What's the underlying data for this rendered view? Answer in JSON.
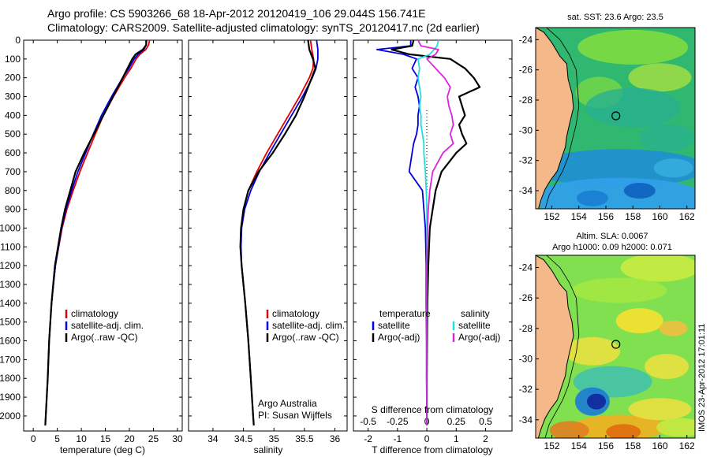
{
  "figure": {
    "title_line1": "Argo profile: CS 5903266_68 18-Apr-2012 20120419_106 29.044S 156.741E",
    "title_line2": "Climatology: CARS2009. Satellite-adjusted climatology: synTS_20120417.nc (2d earlier)",
    "watermark": "IMOS 23-Apr-2012 17:01:11",
    "credit_line1": "Argo Australia",
    "credit_line2": "PI: Susan Wijffels"
  },
  "colors": {
    "climatology": "#e00000",
    "satellite": "#0000dd",
    "argo": "#000000",
    "sal_satellite": "#22dddd",
    "sal_argo": "#dd22dd",
    "land": "#f5b888"
  },
  "chart_data": [
    {
      "type": "line",
      "id": "temperature",
      "xlabel": "temperature (deg C)",
      "xlim": [
        -2,
        31
      ],
      "xticks": [
        0,
        5,
        10,
        15,
        20,
        25,
        30
      ],
      "ylim": [
        2080,
        0
      ],
      "yticks": [
        0,
        100,
        200,
        300,
        400,
        500,
        600,
        700,
        800,
        900,
        1000,
        1100,
        1200,
        1300,
        1400,
        1500,
        1600,
        1700,
        1800,
        1900,
        2000
      ],
      "legend": [
        "climatology",
        "satellite-adj. clim.",
        "Argo(..raw -QC)"
      ],
      "depth": [
        0,
        25,
        50,
        75,
        100,
        150,
        200,
        300,
        400,
        500,
        600,
        700,
        800,
        900,
        1000,
        1200,
        1400,
        1600,
        1800,
        2000,
        2050
      ],
      "series": [
        {
          "name": "climatology",
          "color_key": "climatology",
          "values": [
            24.2,
            24.0,
            23.4,
            22.2,
            21.4,
            20.3,
            19.0,
            16.7,
            14.6,
            12.9,
            11.3,
            9.7,
            8.3,
            7.0,
            6.0,
            4.6,
            3.8,
            3.3,
            3.0,
            2.6,
            2.5
          ]
        },
        {
          "name": "satellite-adj. clim.",
          "color_key": "satellite",
          "values": [
            23.6,
            23.5,
            23.0,
            21.8,
            21.0,
            19.9,
            18.6,
            16.3,
            14.2,
            12.5,
            10.9,
            9.3,
            8.0,
            6.8,
            5.9,
            4.6,
            3.8,
            3.3,
            3.0,
            2.6,
            2.5
          ]
        },
        {
          "name": "Argo(..raw -QC)",
          "color_key": "argo",
          "values": [
            23.5,
            23.5,
            22.8,
            21.3,
            20.6,
            19.6,
            18.6,
            16.6,
            14.6,
            12.6,
            10.6,
            8.8,
            7.7,
            6.6,
            5.8,
            4.5,
            3.8,
            3.3,
            3.0,
            2.6,
            2.5
          ]
        }
      ]
    },
    {
      "type": "line",
      "id": "salinity",
      "xlabel": "salinity",
      "xlim": [
        33.6,
        36.2
      ],
      "xticks": [
        34,
        34.5,
        35,
        35.5,
        36
      ],
      "ylim": [
        2080,
        0
      ],
      "legend": [
        "climatology",
        "satellite-adj. clim.",
        "Argo(..raw -QC)"
      ],
      "depth": [
        0,
        50,
        100,
        150,
        200,
        300,
        400,
        500,
        600,
        700,
        800,
        900,
        1000,
        1100,
        1200,
        1400,
        1600,
        1800,
        2000,
        2050
      ],
      "series": [
        {
          "name": "climatology",
          "color_key": "climatology",
          "values": [
            35.6,
            35.62,
            35.65,
            35.64,
            35.58,
            35.42,
            35.24,
            35.06,
            34.88,
            34.72,
            34.58,
            34.5,
            34.46,
            34.45,
            34.47,
            34.53,
            34.58,
            34.62,
            34.66,
            34.67
          ]
        },
        {
          "name": "satellite-adj. clim.",
          "color_key": "satellite",
          "values": [
            35.7,
            35.72,
            35.72,
            35.69,
            35.63,
            35.47,
            35.29,
            35.11,
            34.93,
            34.76,
            34.62,
            34.52,
            34.47,
            34.46,
            34.47,
            34.53,
            34.58,
            34.62,
            34.66,
            34.67
          ]
        },
        {
          "name": "Argo(..raw -QC)",
          "color_key": "argo",
          "values": [
            35.56,
            35.58,
            35.64,
            35.68,
            35.62,
            35.5,
            35.36,
            35.18,
            34.98,
            34.75,
            34.58,
            34.5,
            34.46,
            34.45,
            34.47,
            34.53,
            34.58,
            34.62,
            34.66,
            34.67
          ]
        }
      ]
    },
    {
      "type": "line",
      "id": "difference",
      "title_top": "S difference from climatology",
      "xlabel": "T difference from climatology",
      "xlim": [
        -2.5,
        2.9
      ],
      "xticks": [
        -2,
        -1,
        0,
        1,
        2
      ],
      "xticklabels_top": [
        "-0.5",
        "-0.25",
        "0",
        "0.25",
        "0.5"
      ],
      "xticks_top": [
        -2,
        -1,
        0,
        1,
        2
      ],
      "ylim": [
        2080,
        0
      ],
      "legend_left_header": "temperature",
      "legend_right_header": "salinity",
      "legend_left": [
        "satellite",
        "Argo(-adj)"
      ],
      "legend_right": [
        "satellite",
        "Argo(-adj)"
      ],
      "depth": [
        0,
        30,
        50,
        75,
        100,
        150,
        200,
        250,
        300,
        350,
        400,
        450,
        500,
        550,
        600,
        700,
        800,
        900,
        1000,
        1200,
        1400,
        1600,
        1800,
        2000,
        2050
      ],
      "series": [
        {
          "name": "T satellite",
          "color_key": "satellite",
          "values": [
            -0.55,
            -0.55,
            -1.7,
            -0.8,
            -0.35,
            -0.5,
            -0.3,
            -0.4,
            -0.3,
            -0.25,
            -0.3,
            -0.3,
            -0.35,
            -0.45,
            -0.5,
            -0.6,
            -0.15,
            -0.1,
            -0.05,
            -0.02,
            -0.02,
            -0.01,
            -0.01,
            0,
            0
          ]
        },
        {
          "name": "T Argo(-adj)",
          "color_key": "argo",
          "values": [
            -0.45,
            -0.5,
            -1.2,
            -0.6,
            0.8,
            1.3,
            1.6,
            1.8,
            1.1,
            1.2,
            1.3,
            1.1,
            1.2,
            1.35,
            1.0,
            0.5,
            0.3,
            0.2,
            0.1,
            0.05,
            0.02,
            0.01,
            0,
            0,
            0
          ]
        },
        {
          "name": "S satellite",
          "color_key": "sal_satellite",
          "values": [
            0.4,
            0.35,
            0.25,
            0.1,
            -0.3,
            -0.25,
            -0.3,
            -0.25,
            -0.2,
            -0.25,
            -0.2,
            -0.2,
            -0.15,
            -0.1,
            -0.1,
            -0.05,
            -0.02,
            0,
            0,
            0,
            0,
            0,
            0,
            0,
            0
          ]
        },
        {
          "name": "S Argo(-adj)",
          "color_key": "sal_argo",
          "values": [
            -0.3,
            -0.2,
            0.4,
            0.3,
            0.0,
            0.3,
            0.6,
            0.8,
            0.7,
            0.75,
            0.85,
            0.9,
            0.8,
            0.9,
            0.55,
            0.2,
            0.1,
            0.05,
            0.02,
            0,
            0,
            0,
            0,
            0,
            0
          ]
        }
      ]
    },
    {
      "type": "heatmap",
      "id": "sst_map",
      "title": "sat. SST: 23.6 Argo: 23.5",
      "xticks": [
        152,
        154,
        156,
        158,
        160,
        162
      ],
      "yticks": [
        -24,
        -26,
        -28,
        -30,
        -32,
        -34
      ],
      "xlim": [
        150.8,
        162.6
      ],
      "ylim": [
        -35.2,
        -23.2
      ],
      "argo_position": {
        "lon": 156.741,
        "lat": -29.044
      },
      "coast": [
        [
          150.8,
          -23.2
        ],
        [
          151.4,
          -23.5
        ],
        [
          152.0,
          -24.2
        ],
        [
          152.6,
          -25.1
        ],
        [
          153.1,
          -25.6
        ],
        [
          153.2,
          -26.6
        ],
        [
          153.5,
          -27.6
        ],
        [
          153.6,
          -28.5
        ],
        [
          153.3,
          -29.6
        ],
        [
          153.1,
          -30.4
        ],
        [
          153.0,
          -31.1
        ],
        [
          152.7,
          -31.9
        ],
        [
          152.4,
          -32.7
        ],
        [
          151.9,
          -33.3
        ],
        [
          151.5,
          -33.9
        ],
        [
          151.2,
          -34.6
        ],
        [
          151.0,
          -35.2
        ]
      ],
      "shelf": [
        [
          151.6,
          -23.2
        ],
        [
          152.6,
          -24.0
        ],
        [
          153.3,
          -25.0
        ],
        [
          153.8,
          -26.0
        ],
        [
          153.9,
          -27.2
        ],
        [
          154.0,
          -28.4
        ],
        [
          153.8,
          -29.6
        ],
        [
          153.5,
          -30.7
        ],
        [
          153.2,
          -31.8
        ],
        [
          152.8,
          -32.7
        ],
        [
          152.3,
          -33.5
        ],
        [
          151.8,
          -34.3
        ],
        [
          151.5,
          -35.2
        ]
      ]
    },
    {
      "type": "heatmap",
      "id": "sla_map",
      "title_line1": "Altim. SLA: 0.0067",
      "title_line2": "Argo h1000: 0.09 h2000: 0.071",
      "xticks": [
        152,
        154,
        156,
        158,
        160,
        162
      ],
      "yticks": [
        -24,
        -26,
        -28,
        -30,
        -32,
        -34
      ],
      "xlim": [
        150.8,
        162.6
      ],
      "ylim": [
        -35.2,
        -23.2
      ],
      "argo_position": {
        "lon": 156.741,
        "lat": -29.044
      }
    }
  ]
}
